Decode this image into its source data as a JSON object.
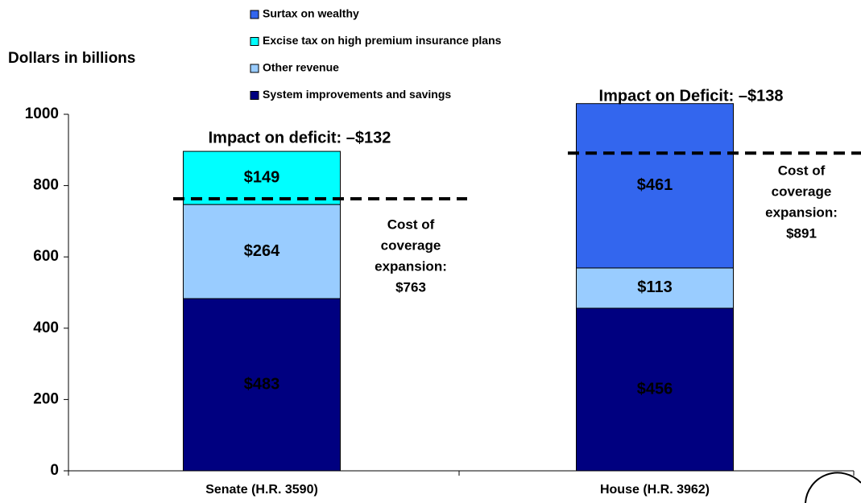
{
  "chart_data": {
    "type": "stacked-bar",
    "ylabel": "Dollars in billions",
    "categories": [
      "Senate (H.R. 3590)",
      "House (H.R. 3962)"
    ],
    "series": [
      {
        "name": "System improvements and savings",
        "color": "#000080",
        "values": [
          483,
          456
        ],
        "value_labels": [
          "$483",
          "$456"
        ]
      },
      {
        "name": "Other revenue",
        "color": "#99ccff",
        "values": [
          264,
          113
        ],
        "value_labels": [
          "$264",
          "$113"
        ]
      },
      {
        "name": "Excise tax on high premium insurance plans",
        "color": "#00ffff",
        "values": [
          149,
          null
        ],
        "value_labels": [
          "$149",
          null
        ]
      },
      {
        "name": "Surtax on wealthy",
        "color": "#3366ee",
        "values": [
          null,
          461
        ],
        "value_labels": [
          null,
          "$461"
        ]
      }
    ],
    "ylim": [
      0,
      1000
    ],
    "yticks": [
      0,
      200,
      400,
      600,
      800,
      1000
    ],
    "impact_labels": [
      "Impact on deficit: –$132",
      "Impact on Deficit: –$138"
    ],
    "cost_lines": [
      {
        "lines": [
          "Cost of",
          "coverage",
          "expansion:"
        ],
        "value": 763,
        "label": "$763"
      },
      {
        "lines": [
          "Cost of",
          "coverage",
          "expansion:"
        ],
        "value": 891,
        "label": "$891"
      }
    ]
  }
}
